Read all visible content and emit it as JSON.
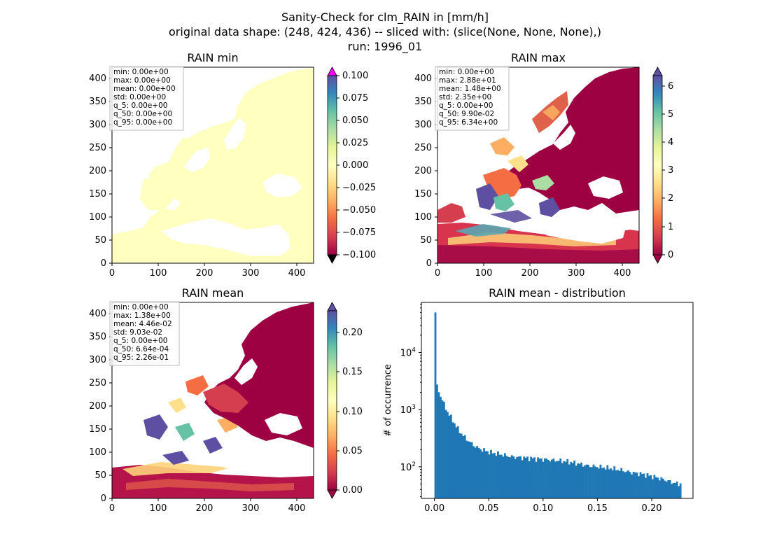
{
  "title_lines": [
    "Sanity-Check for clm_RAIN in [mm/h]",
    "original data shape: (248, 424, 436) -- sliced with: (slice(None, None, None),)",
    "run: 1996_01"
  ],
  "chart_data": [
    {
      "type": "heatmap",
      "title": "RAIN min",
      "x_ticks": [
        "0",
        "100",
        "200",
        "300",
        "400"
      ],
      "y_ticks": [
        "0",
        "50",
        "100",
        "150",
        "200",
        "250",
        "300",
        "350",
        "400"
      ],
      "xlim": [
        0,
        436
      ],
      "ylim": [
        0,
        424
      ],
      "colormap": "Spectral",
      "colorbar_ticks": [
        "0.100",
        "0.075",
        "0.050",
        "0.025",
        "0.000",
        "−0.025",
        "−0.050",
        "−0.075",
        "−0.100"
      ],
      "colorbar_range": [
        -0.1,
        0.1
      ],
      "colorbar_extend": "both",
      "stats": [
        "min: 0.00e+00",
        "max: 0.00e+00",
        "mean: 0.00e+00",
        "std: 0.00e+00",
        "q_5: 0.00e+00",
        "q_50: 0.00e+00",
        "q_95: 0.00e+00"
      ]
    },
    {
      "type": "heatmap",
      "title": "RAIN max",
      "x_ticks": [
        "0",
        "100",
        "200",
        "300",
        "400"
      ],
      "y_ticks": [
        "0",
        "50",
        "100",
        "150",
        "200",
        "250",
        "300",
        "350",
        "400"
      ],
      "xlim": [
        0,
        436
      ],
      "ylim": [
        0,
        424
      ],
      "colormap": "Spectral",
      "colorbar_ticks": [
        "6",
        "5",
        "4",
        "3",
        "2",
        "1",
        "0"
      ],
      "colorbar_range": [
        0,
        6.5
      ],
      "colorbar_extend": "both",
      "stats": [
        "min: 0.00e+00",
        "max: 2.88e+01",
        "mean: 1.48e+00",
        "std: 2.35e+00",
        "q_5: 0.00e+00",
        "q_50: 9.90e-02",
        "q_95: 6.34e+00"
      ]
    },
    {
      "type": "heatmap",
      "title": "RAIN mean",
      "x_ticks": [
        "0",
        "100",
        "200",
        "300",
        "400"
      ],
      "y_ticks": [
        "0",
        "50",
        "100",
        "150",
        "200",
        "250",
        "300",
        "350",
        "400"
      ],
      "xlim": [
        0,
        436
      ],
      "ylim": [
        0,
        424
      ],
      "colormap": "Spectral",
      "colorbar_ticks": [
        "0.20",
        "0.15",
        "0.10",
        "0.05",
        "0.00"
      ],
      "colorbar_range": [
        0,
        0.23
      ],
      "colorbar_extend": "both",
      "stats": [
        "min: 0.00e+00",
        "max: 1.38e+00",
        "mean: 4.46e-02",
        "std: 9.03e-02",
        "q_5: 0.00e+00",
        "q_50: 6.64e-04",
        "q_95: 2.26e-01"
      ]
    },
    {
      "type": "bar",
      "title": "RAIN mean - distribution",
      "ylabel": "# of occurrence",
      "xlabel": "",
      "y_scale": "log",
      "x_ticks": [
        "0.00",
        "0.05",
        "0.10",
        "0.15",
        "0.20"
      ],
      "xlim": [
        -0.012,
        0.238
      ],
      "ylim": [
        28,
        75000
      ],
      "bar_color": "#1f77b4",
      "histogram": [
        {
          "x": 0.0,
          "count": 50000
        },
        {
          "x": 0.0015,
          "count": 2600
        },
        {
          "x": 0.003,
          "count": 2100
        },
        {
          "x": 0.005,
          "count": 1700
        },
        {
          "x": 0.007,
          "count": 1400
        },
        {
          "x": 0.01,
          "count": 1000
        },
        {
          "x": 0.015,
          "count": 700
        },
        {
          "x": 0.02,
          "count": 480
        },
        {
          "x": 0.025,
          "count": 360
        },
        {
          "x": 0.03,
          "count": 290
        },
        {
          "x": 0.035,
          "count": 240
        },
        {
          "x": 0.04,
          "count": 210
        },
        {
          "x": 0.05,
          "count": 180
        },
        {
          "x": 0.06,
          "count": 165
        },
        {
          "x": 0.07,
          "count": 150
        },
        {
          "x": 0.08,
          "count": 145
        },
        {
          "x": 0.09,
          "count": 140
        },
        {
          "x": 0.1,
          "count": 135
        },
        {
          "x": 0.11,
          "count": 130
        },
        {
          "x": 0.12,
          "count": 125
        },
        {
          "x": 0.13,
          "count": 115
        },
        {
          "x": 0.14,
          "count": 105
        },
        {
          "x": 0.15,
          "count": 100
        },
        {
          "x": 0.16,
          "count": 95
        },
        {
          "x": 0.17,
          "count": 88
        },
        {
          "x": 0.18,
          "count": 80
        },
        {
          "x": 0.19,
          "count": 75
        },
        {
          "x": 0.2,
          "count": 68
        },
        {
          "x": 0.21,
          "count": 60
        },
        {
          "x": 0.22,
          "count": 52
        },
        {
          "x": 0.226,
          "count": 50
        }
      ]
    }
  ]
}
